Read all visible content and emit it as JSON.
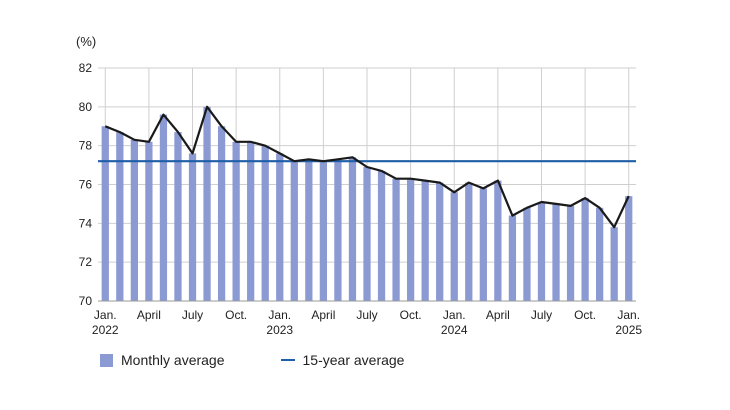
{
  "chart_data": {
    "type": "bar+line",
    "unit_label": "(%)",
    "y_axis": {
      "min": 70,
      "max": 82,
      "ticks": [
        70,
        72,
        74,
        76,
        78,
        80,
        82
      ]
    },
    "x_tick_labels": [
      {
        "index": 0,
        "lines": [
          "Jan.",
          "2022"
        ]
      },
      {
        "index": 3,
        "lines": [
          "April"
        ]
      },
      {
        "index": 6,
        "lines": [
          "July"
        ]
      },
      {
        "index": 9,
        "lines": [
          "Oct."
        ]
      },
      {
        "index": 12,
        "lines": [
          "Jan.",
          "2023"
        ]
      },
      {
        "index": 15,
        "lines": [
          "April"
        ]
      },
      {
        "index": 18,
        "lines": [
          "July"
        ]
      },
      {
        "index": 21,
        "lines": [
          "Oct."
        ]
      },
      {
        "index": 24,
        "lines": [
          "Jan.",
          "2024"
        ]
      },
      {
        "index": 27,
        "lines": [
          "April"
        ]
      },
      {
        "index": 30,
        "lines": [
          "July"
        ]
      },
      {
        "index": 33,
        "lines": [
          "Oct."
        ]
      },
      {
        "index": 36,
        "lines": [
          "Jan.",
          "2025"
        ]
      }
    ],
    "series": [
      {
        "name": "Monthly average",
        "kind": "bar",
        "color": "#8c9ad4",
        "values": [
          79.0,
          78.7,
          78.3,
          78.2,
          79.6,
          78.7,
          77.6,
          80.0,
          79.0,
          78.2,
          78.2,
          78.0,
          77.6,
          77.2,
          77.3,
          77.2,
          77.3,
          77.4,
          76.9,
          76.7,
          76.3,
          76.3,
          76.2,
          76.1,
          75.6,
          76.1,
          75.8,
          76.2,
          74.4,
          74.8,
          75.1,
          75.0,
          74.9,
          75.3,
          74.8,
          73.8,
          75.4
        ]
      },
      {
        "name": "Monthly average line",
        "kind": "line",
        "color": "#1a1a1a",
        "values": [
          79.0,
          78.7,
          78.3,
          78.2,
          79.6,
          78.7,
          77.6,
          80.0,
          79.0,
          78.2,
          78.2,
          78.0,
          77.6,
          77.2,
          77.3,
          77.2,
          77.3,
          77.4,
          76.9,
          76.7,
          76.3,
          76.3,
          76.2,
          76.1,
          75.6,
          76.1,
          75.8,
          76.2,
          74.4,
          74.8,
          75.1,
          75.0,
          74.9,
          75.3,
          74.8,
          73.8,
          75.4
        ]
      },
      {
        "name": "15-year average",
        "kind": "hline",
        "color": "#1f5fa8",
        "value": 77.2
      }
    ],
    "grid": true
  },
  "legend": {
    "monthly_label": "Monthly average",
    "avg_label": "15-year average",
    "bar_color": "#8c9ad4",
    "line_color": "#1f5fa8"
  }
}
